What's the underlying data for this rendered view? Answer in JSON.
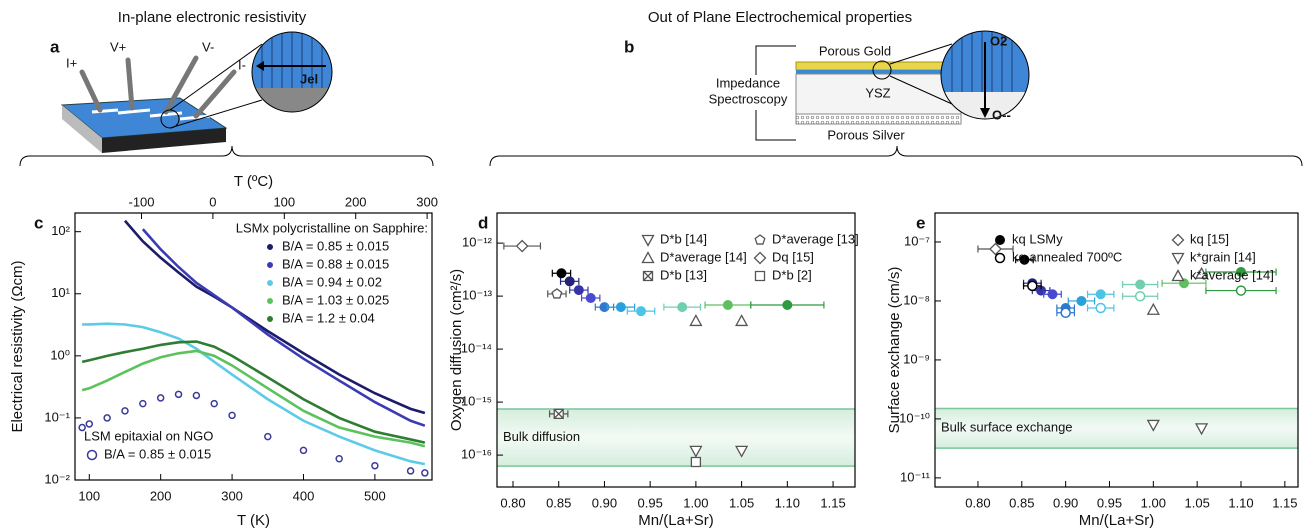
{
  "diagram": {
    "a": {
      "letter": "a",
      "title": "In-plane electronic resistivity",
      "v_plus": "V+",
      "v_minus": "V-",
      "i_plus": "I+",
      "i_minus": "I-",
      "current": "Jel"
    },
    "b": {
      "letter": "b",
      "title": "Out of Plane Electrochemical properties",
      "top_layer": "Porous Gold",
      "instrument_1": "Impedance",
      "instrument_2": "Spectroscopy",
      "electrolyte": "YSZ",
      "bottom_layer": "Porous Silver",
      "gas": "O2",
      "ion": "O--"
    }
  },
  "chart_data": [
    {
      "type": "line",
      "label": "c",
      "xlabel": "T (K)",
      "ylabel": "Electrical resistivity  (Ωcm)",
      "x2label": "T (ºC)",
      "ylog": true,
      "xlim": [
        80,
        580
      ],
      "xticks": [
        100,
        200,
        300,
        400,
        500
      ],
      "x2lim": [
        -193.15,
        306.85
      ],
      "x2ticks": [
        -100,
        0,
        100,
        200,
        300
      ],
      "ylim": [
        0.01,
        200
      ],
      "yticks": [
        {
          "value": 0.01,
          "label": "10⁻²"
        },
        {
          "value": 0.1,
          "label": "10⁻¹"
        },
        {
          "value": 1,
          "label": "10⁰"
        },
        {
          "value": 10,
          "label": "10¹"
        },
        {
          "value": 100,
          "label": "10²"
        }
      ],
      "legend_titles": [
        "LSMx polycristalline on Sapphire:",
        "LSM epitaxial on NGO"
      ],
      "x": [
        90,
        100,
        125,
        150,
        175,
        200,
        225,
        250,
        275,
        300,
        350,
        400,
        450,
        500,
        550,
        570
      ],
      "series": [
        {
          "name": "B/A = 0.85 ± 0.015",
          "color": "#1c1c6b",
          "values": [
            null,
            null,
            null,
            150,
            70,
            38,
            22,
            13,
            9,
            6,
            2.5,
            1.1,
            0.5,
            0.25,
            0.14,
            0.12
          ]
        },
        {
          "name": "B/A = 0.88 ± 0.015",
          "color": "#3b3bb5",
          "values": [
            null,
            null,
            null,
            null,
            110,
            52,
            27,
            15,
            9.5,
            6,
            2.2,
            0.9,
            0.4,
            0.18,
            0.09,
            0.075
          ]
        },
        {
          "name": "B/A = 0.94 ± 0.02",
          "color": "#5ccbe8",
          "values": [
            3.2,
            3.2,
            3.3,
            3.2,
            2.9,
            2.4,
            1.9,
            1.3,
            0.8,
            0.5,
            0.2,
            0.09,
            0.05,
            0.03,
            0.02,
            0.018
          ]
        },
        {
          "name": "B/A = 1.03 ± 0.025",
          "color": "#5cc25c",
          "values": [
            0.28,
            0.3,
            0.4,
            0.55,
            0.75,
            0.95,
            1.1,
            1.2,
            1.0,
            0.7,
            0.3,
            0.13,
            0.07,
            0.05,
            0.04,
            0.035
          ]
        },
        {
          "name": "B/A = 1.2 ± 0.04",
          "color": "#2e7d32",
          "values": [
            0.8,
            0.85,
            1.0,
            1.15,
            1.3,
            1.5,
            1.65,
            1.7,
            1.4,
            1.0,
            0.45,
            0.2,
            0.1,
            0.06,
            0.045,
            0.04
          ]
        },
        {
          "name": "B/A = 0.85 ± 0.015",
          "color": "#3a3a9a",
          "marker": "open-circle",
          "values": [
            0.07,
            0.08,
            0.1,
            0.13,
            0.17,
            0.21,
            0.24,
            0.23,
            0.17,
            0.11,
            0.05,
            0.03,
            0.022,
            0.017,
            0.014,
            0.013
          ]
        }
      ]
    },
    {
      "type": "scatter",
      "label": "d",
      "xlabel": "Mn/(La+Sr)",
      "ylabel": "Oxygen diffusion (cm²/s)",
      "ylog": true,
      "xlim": [
        0.7825,
        1.174
      ],
      "xticks": [
        {
          "value": 0.8,
          "label": "0.80"
        },
        0.85,
        {
          "value": 0.9,
          "label": "0.90"
        },
        0.95,
        {
          "value": 1.0,
          "label": "1.00"
        },
        1.05,
        {
          "value": 1.1,
          "label": "1.10"
        },
        1.15
      ],
      "ylim": [
        2.5e-17,
        3.7e-12
      ],
      "yticks": [
        {
          "value": 1e-12,
          "label": "10⁻¹²"
        },
        {
          "value": 1e-13,
          "label": "10⁻¹³"
        },
        {
          "value": 1e-14,
          "label": "10⁻¹⁴"
        },
        {
          "value": 1e-15,
          "label": "10⁻¹⁵"
        },
        {
          "value": 1e-16,
          "label": "10⁻¹⁶"
        }
      ],
      "bands": [
        {
          "label": "Bulk diffusion",
          "range": [
            6.2e-17,
            7.4e-16
          ]
        }
      ],
      "series": [
        {
          "name": "D*b [14]",
          "marker": "triangle-down",
          "color": "#555555",
          "x": [
            1.0,
            1.05
          ],
          "values": [
            1.2e-16,
            1.2e-16
          ]
        },
        {
          "name": "D*average [14]",
          "marker": "triangle-up",
          "color": "#555555",
          "x": [
            1.0,
            1.05
          ],
          "values": [
            3.4e-14,
            3.4e-14
          ]
        },
        {
          "name": "D*b [13]",
          "marker": "crossed-square",
          "color": "#555555",
          "x": [
            0.85
          ],
          "values": [
            6e-16
          ],
          "xerr": [
            0.01
          ]
        },
        {
          "name": "D*average [13]",
          "marker": "pentagon",
          "color": "#555555",
          "x": [
            0.848
          ],
          "values": [
            1.1e-13
          ],
          "xerr": [
            0.01
          ]
        },
        {
          "name": "Dq [15]",
          "marker": "diamond",
          "color": "#555555",
          "x": [
            0.81
          ],
          "values": [
            8.8e-13
          ],
          "xerr": [
            0.02
          ]
        },
        {
          "name": "D*b [2]",
          "marker": "square",
          "color": "#555555",
          "x": [
            1.0
          ],
          "values": [
            7.4e-17
          ]
        },
        {
          "marker": "circle",
          "colors": [
            "#000000",
            "#23237a",
            "#3434a8",
            "#4a4ad0",
            "#2f78cf",
            "#2aa0dc",
            "#4cc4e6",
            "#6fcfb0",
            "#5fbf5f",
            "#2f9a3f"
          ],
          "x": [
            0.853,
            0.862,
            0.872,
            0.885,
            0.9,
            0.918,
            0.94,
            0.985,
            1.035,
            1.1
          ],
          "values": [
            2.7e-13,
            1.9e-13,
            1.3e-13,
            9.2e-14,
            6.2e-14,
            6.2e-14,
            5.2e-14,
            6.2e-14,
            6.8e-14,
            6.8e-14
          ],
          "xerr": [
            0.01,
            0.01,
            0.01,
            0.01,
            0.01,
            0.015,
            0.015,
            0.02,
            0.025,
            0.04
          ]
        }
      ]
    },
    {
      "type": "scatter",
      "label": "e",
      "xlabel": "Mn/(La+Sr)",
      "ylabel": "Surface exchange (cm/s)",
      "ylog": true,
      "xlim": [
        0.751,
        1.165
      ],
      "xticks": [
        {
          "value": 0.8,
          "label": "0.80"
        },
        0.85,
        {
          "value": 0.9,
          "label": "0.90"
        },
        0.95,
        {
          "value": 1.0,
          "label": "1.00"
        },
        1.05,
        {
          "value": 1.1,
          "label": "1.10"
        },
        1.15
      ],
      "ylim": [
        7e-12,
        3.1e-07
      ],
      "yticks": [
        {
          "value": 1e-07,
          "label": "10⁻⁷"
        },
        {
          "value": 1e-08,
          "label": "10⁻⁸"
        },
        {
          "value": 1e-09,
          "label": "10⁻⁹"
        },
        {
          "value": 1e-10,
          "label": "10⁻¹⁰"
        },
        {
          "value": 1e-11,
          "label": "10⁻¹¹"
        }
      ],
      "bands": [
        {
          "label": "Bulk surface exchange",
          "range": [
            3.2e-11,
            1.5e-10
          ]
        }
      ],
      "series": [
        {
          "name": "kq LSMy",
          "marker": "circle",
          "colors": [
            "#000000",
            "#23237a",
            "#3434a8",
            "#4a4ad0",
            "#2f78cf",
            "#2aa0dc",
            "#4cc4e6",
            "#6fcfb0",
            "#5fbf5f",
            "#2f9a3f"
          ],
          "x": [
            0.853,
            0.862,
            0.872,
            0.885,
            0.9,
            0.918,
            0.94,
            0.985,
            1.035,
            1.1
          ],
          "values": [
            5e-08,
            2e-08,
            1.5e-08,
            1.3e-08,
            7.6e-09,
            1e-08,
            1.3e-08,
            1.9e-08,
            2e-08,
            3.1e-08
          ],
          "xerr": [
            0.01,
            0.01,
            0.01,
            0.01,
            0.01,
            0.015,
            0.015,
            0.02,
            0.025,
            0.04
          ]
        },
        {
          "name": "kq annealed 700ºC",
          "marker": "open-circle",
          "colors": [
            "#000000",
            "#2f78cf",
            "#4cc4e6",
            "#6fcfb0",
            "#2f9a3f"
          ],
          "x": [
            0.862,
            0.9,
            0.94,
            0.985,
            1.1
          ],
          "values": [
            1.8e-08,
            6.3e-09,
            7.6e-09,
            1.2e-08,
            1.5e-08
          ],
          "xerr": [
            0.01,
            0.01,
            0.015,
            0.02,
            0.04
          ]
        },
        {
          "name": "kq [15]",
          "marker": "diamond",
          "color": "#555555",
          "x": [
            0.82
          ],
          "values": [
            7.6e-08
          ],
          "xerr": [
            0.02
          ]
        },
        {
          "name": "k*grain [14]",
          "marker": "triangle-down",
          "color": "#555555",
          "x": [
            1.0,
            1.055
          ],
          "values": [
            7.9e-11,
            6.9e-11
          ]
        },
        {
          "name": "k*average [14]",
          "marker": "triangle-up",
          "color": "#555555",
          "x": [
            1.0,
            1.055
          ],
          "values": [
            7.1e-09,
            2.9e-08
          ]
        }
      ]
    }
  ]
}
